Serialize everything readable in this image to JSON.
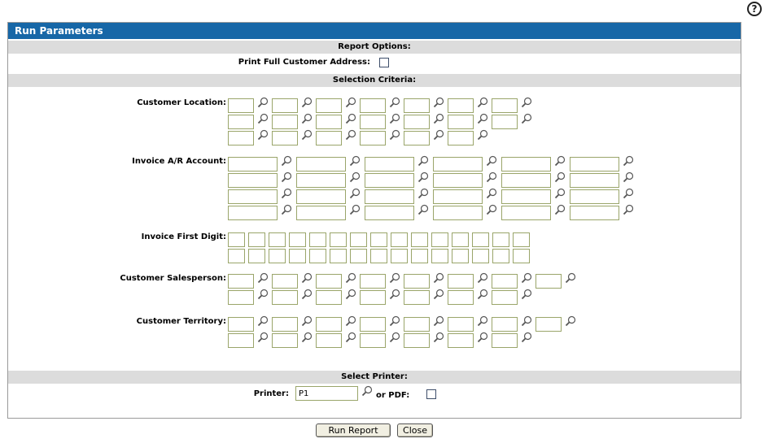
{
  "panel": {
    "title": "Run Parameters"
  },
  "help": {
    "glyph": "?"
  },
  "sections": {
    "report_options": "Report Options:",
    "selection_criteria": "Selection Criteria:",
    "select_printer": "Select Printer:"
  },
  "labels": {
    "print_full_address": "Print Full Customer Address:",
    "customer_location": "Customer Location:",
    "invoice_ar_account": "Invoice A/R Account:",
    "invoice_first_digit": "Invoice First Digit:",
    "customer_salesperson": "Customer Salesperson:",
    "customer_territory": "Customer Territory:",
    "printer": "Printer:",
    "or_pdf": "or PDF:"
  },
  "printer": {
    "value": "P1"
  },
  "buttons": {
    "run_report": "Run Report",
    "close": "Close"
  },
  "colors": {
    "title_bar": "#1767a7",
    "band": "#dcdcdc",
    "field_border": "#9aa56a"
  },
  "icons": {
    "lookup": "magnifier-icon",
    "help": "question-circle-icon"
  }
}
